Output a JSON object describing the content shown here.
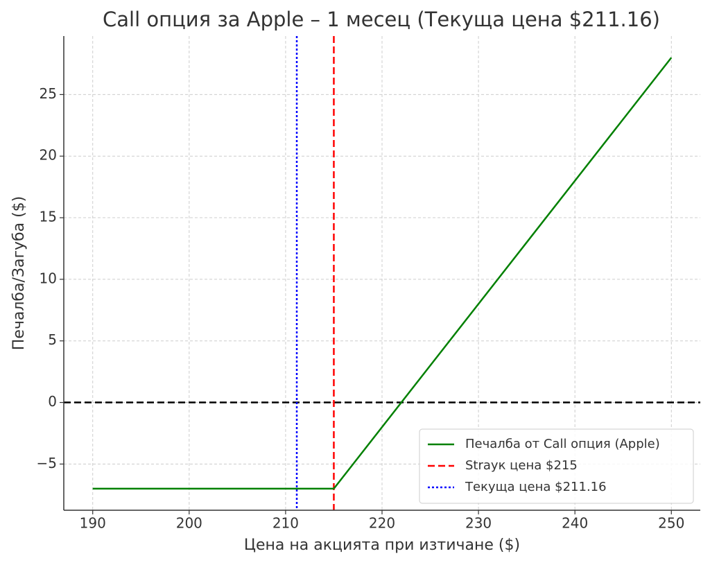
{
  "chart_data": {
    "type": "line",
    "title": "Call опция за Apple – 1 месец (Текуща цена $211.16)",
    "xlabel": "Цена на акцията при изтичане ($)",
    "ylabel": "Печалба/Загуба ($)",
    "x": [
      190,
      215,
      250
    ],
    "series": [
      {
        "name": "Печалба от Call опция (Apple)",
        "color": "#008000",
        "values": [
          -7,
          -7,
          28
        ]
      }
    ],
    "vlines": [
      {
        "name": "Strayк цена $215",
        "color": "#ff0000",
        "x": 215,
        "style": "dashed"
      },
      {
        "name": "Текуща цена $211.16",
        "color": "#0000ff",
        "x": 211.16,
        "style": "dotted"
      }
    ],
    "hlines": [
      {
        "y": 0,
        "color": "#000000",
        "style": "dashed"
      }
    ],
    "xlim": [
      187,
      253
    ],
    "xticks": [
      190,
      200,
      210,
      220,
      230,
      240,
      250
    ],
    "ylim": [
      -8.75,
      29.75
    ],
    "yticks": [
      {
        "value": -5,
        "label": "−5"
      },
      0,
      5,
      10,
      15,
      20,
      25
    ],
    "grid": true,
    "legend": "lower right"
  }
}
